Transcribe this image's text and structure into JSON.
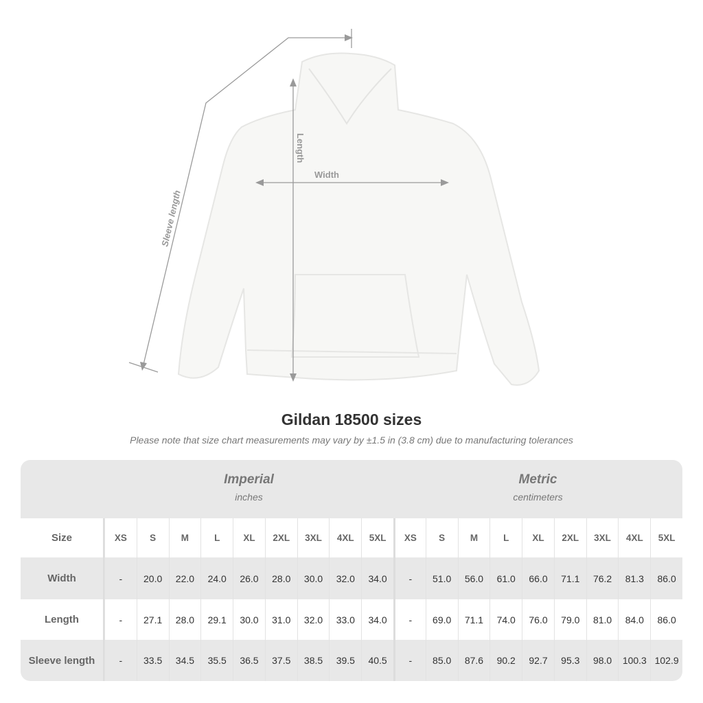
{
  "diagram_labels": {
    "sleeve": "Sleeve length",
    "length": "Length",
    "width": "Width"
  },
  "title": "Gildan 18500 sizes",
  "subtitle": "Please note that size chart measurements may vary by ±1.5 in (3.8 cm) due to manufacturing tolerances",
  "imperial": {
    "heading": "Imperial",
    "unit": "inches"
  },
  "metric": {
    "heading": "Metric",
    "unit": "centimeters"
  },
  "size_label": "Size",
  "sizes": [
    "XS",
    "S",
    "M",
    "L",
    "XL",
    "2XL",
    "3XL",
    "4XL",
    "5XL"
  ],
  "rows": [
    {
      "label": "Width",
      "imperial": [
        "-",
        "20.0",
        "22.0",
        "24.0",
        "26.0",
        "28.0",
        "30.0",
        "32.0",
        "34.0"
      ],
      "metric": [
        "-",
        "51.0",
        "56.0",
        "61.0",
        "66.0",
        "71.1",
        "76.2",
        "81.3",
        "86.0"
      ]
    },
    {
      "label": "Length",
      "imperial": [
        "-",
        "27.1",
        "28.0",
        "29.1",
        "30.0",
        "31.0",
        "32.0",
        "33.0",
        "34.0"
      ],
      "metric": [
        "-",
        "69.0",
        "71.1",
        "74.0",
        "76.0",
        "79.0",
        "81.0",
        "84.0",
        "86.0"
      ]
    },
    {
      "label": "Sleeve length",
      "imperial": [
        "-",
        "33.5",
        "34.5",
        "35.5",
        "36.5",
        "37.5",
        "38.5",
        "39.5",
        "40.5"
      ],
      "metric": [
        "-",
        "85.0",
        "87.6",
        "90.2",
        "92.7",
        "95.3",
        "98.0",
        "100.3",
        "102.9"
      ]
    }
  ],
  "colors": {
    "band": "#e8e8e8",
    "text": "#333333",
    "muted": "#777777",
    "line": "#999999"
  }
}
